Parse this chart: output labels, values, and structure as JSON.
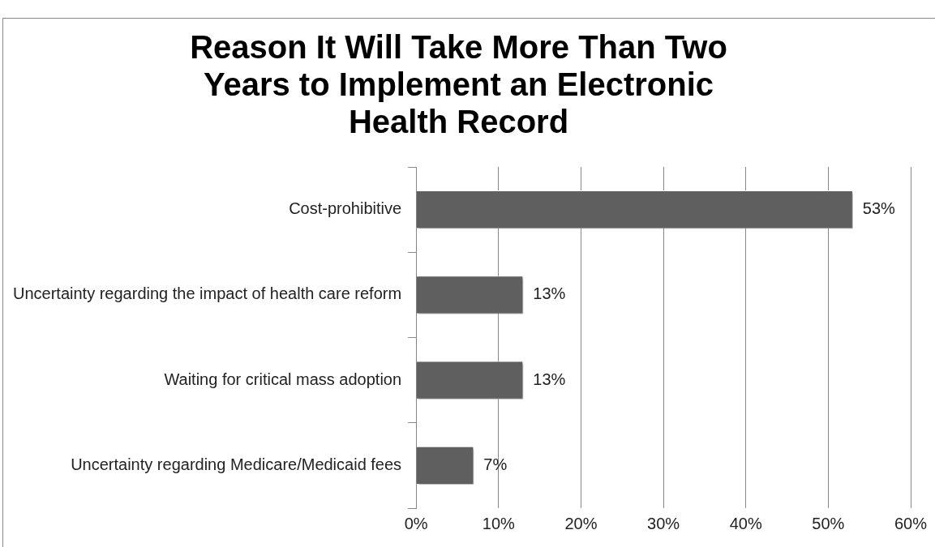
{
  "chart_data": {
    "type": "bar",
    "orientation": "horizontal",
    "title": "Reason It Will Take More Than Two Years to Implement an Electronic Health Record",
    "categories": [
      "Cost-prohibitive",
      "Uncertainty regarding the impact of health care reform",
      "Waiting for critical mass adoption",
      "Uncertainty regarding Medicare/Medicaid fees"
    ],
    "values": [
      53,
      13,
      13,
      7
    ],
    "color": "#5f5f5f",
    "value_labels": [
      "53%",
      "13%",
      "13%",
      "7%"
    ],
    "xlim": [
      0,
      60
    ],
    "xticks": [
      {
        "value": 0,
        "label": "0%"
      },
      {
        "value": 10,
        "label": "10%"
      },
      {
        "value": 20,
        "label": "20%"
      },
      {
        "value": 30,
        "label": "30%"
      },
      {
        "value": 40,
        "label": "40%"
      },
      {
        "value": 50,
        "label": "50%"
      },
      {
        "value": 60,
        "label": "60%"
      }
    ],
    "grid": "x",
    "legend": false
  }
}
